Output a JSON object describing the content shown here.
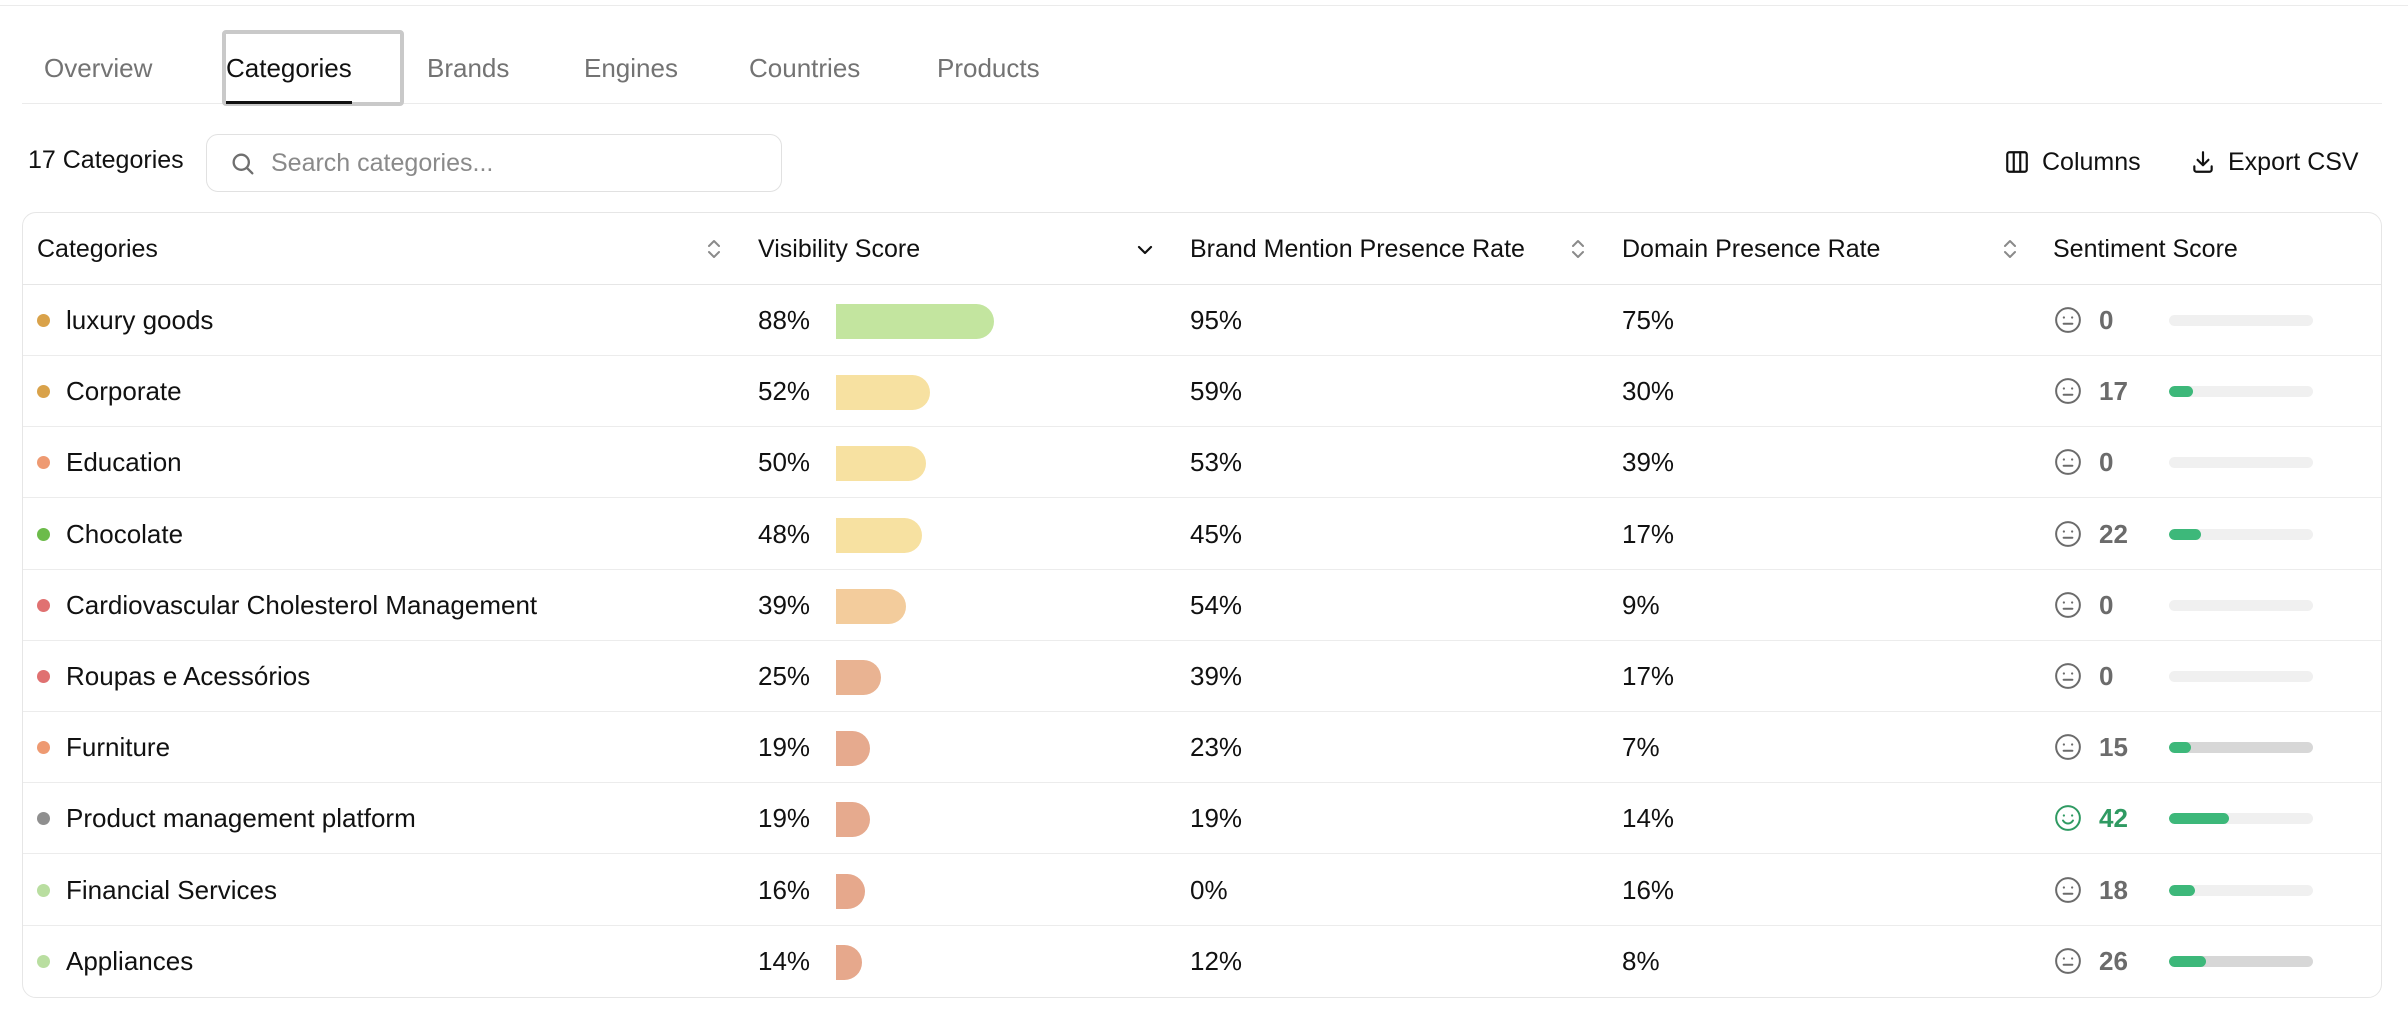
{
  "tabs": [
    {
      "label": "Overview",
      "active": false
    },
    {
      "label": "Categories",
      "active": true
    },
    {
      "label": "Brands",
      "active": false
    },
    {
      "label": "Engines",
      "active": false
    },
    {
      "label": "Countries",
      "active": false
    },
    {
      "label": "Products",
      "active": false
    }
  ],
  "toolbar": {
    "count_label": "17 Categories",
    "search_placeholder": "Search categories...",
    "search_value": "",
    "columns_label": "Columns",
    "export_label": "Export CSV"
  },
  "table": {
    "columns": {
      "categories": "Categories",
      "visibility": "Visibility Score",
      "brand_mention": "Brand Mention Presence Rate",
      "domain_presence": "Domain Presence Rate",
      "sentiment": "Sentiment Score"
    },
    "rows": [
      {
        "name": "luxury goods",
        "dot_color": "#d9a24a",
        "visibility": "88%",
        "visibility_value": 88,
        "bar_color": "#c3e59f",
        "brand": "95%",
        "domain": "75%",
        "sentiment": "0",
        "sentiment_value": 0,
        "sentiment_positive": false,
        "track_grey": false
      },
      {
        "name": "Corporate",
        "dot_color": "#d9a24a",
        "visibility": "52%",
        "visibility_value": 52,
        "bar_color": "#f7e1a1",
        "brand": "59%",
        "domain": "30%",
        "sentiment": "17",
        "sentiment_value": 17,
        "sentiment_positive": false,
        "track_grey": false
      },
      {
        "name": "Education",
        "dot_color": "#ee9a72",
        "visibility": "50%",
        "visibility_value": 50,
        "bar_color": "#f7e1a1",
        "brand": "53%",
        "domain": "39%",
        "sentiment": "0",
        "sentiment_value": 0,
        "sentiment_positive": false,
        "track_grey": false
      },
      {
        "name": "Chocolate",
        "dot_color": "#6cbb4a",
        "visibility": "48%",
        "visibility_value": 48,
        "bar_color": "#f7e1a1",
        "brand": "45%",
        "domain": "17%",
        "sentiment": "22",
        "sentiment_value": 22,
        "sentiment_positive": false,
        "track_grey": false
      },
      {
        "name": "Cardiovascular Cholesterol Management",
        "dot_color": "#e07171",
        "visibility": "39%",
        "visibility_value": 39,
        "bar_color": "#f3cc9c",
        "brand": "54%",
        "domain": "9%",
        "sentiment": "0",
        "sentiment_value": 0,
        "sentiment_positive": false,
        "track_grey": false
      },
      {
        "name": "Roupas e Acessórios",
        "dot_color": "#e07171",
        "visibility": "25%",
        "visibility_value": 25,
        "bar_color": "#e9b392",
        "brand": "39%",
        "domain": "17%",
        "sentiment": "0",
        "sentiment_value": 0,
        "sentiment_positive": false,
        "track_grey": false
      },
      {
        "name": "Furniture",
        "dot_color": "#ee9a72",
        "visibility": "19%",
        "visibility_value": 19,
        "bar_color": "#e6aa8e",
        "brand": "23%",
        "domain": "7%",
        "sentiment": "15",
        "sentiment_value": 15,
        "sentiment_positive": false,
        "track_grey": true
      },
      {
        "name": "Product management platform",
        "dot_color": "#8f8f8f",
        "visibility": "19%",
        "visibility_value": 19,
        "bar_color": "#e6aa8e",
        "brand": "19%",
        "domain": "14%",
        "sentiment": "42",
        "sentiment_value": 42,
        "sentiment_positive": true,
        "track_grey": false
      },
      {
        "name": "Financial Services",
        "dot_color": "#b9dea0",
        "visibility": "16%",
        "visibility_value": 16,
        "bar_color": "#e6a88c",
        "brand": "0%",
        "domain": "16%",
        "sentiment": "18",
        "sentiment_value": 18,
        "sentiment_positive": false,
        "track_grey": false
      },
      {
        "name": "Appliances",
        "dot_color": "#b9dea0",
        "visibility": "14%",
        "visibility_value": 14,
        "bar_color": "#e6a88c",
        "brand": "12%",
        "domain": "8%",
        "sentiment": "26",
        "sentiment_value": 26,
        "sentiment_positive": false,
        "track_grey": true
      }
    ]
  }
}
